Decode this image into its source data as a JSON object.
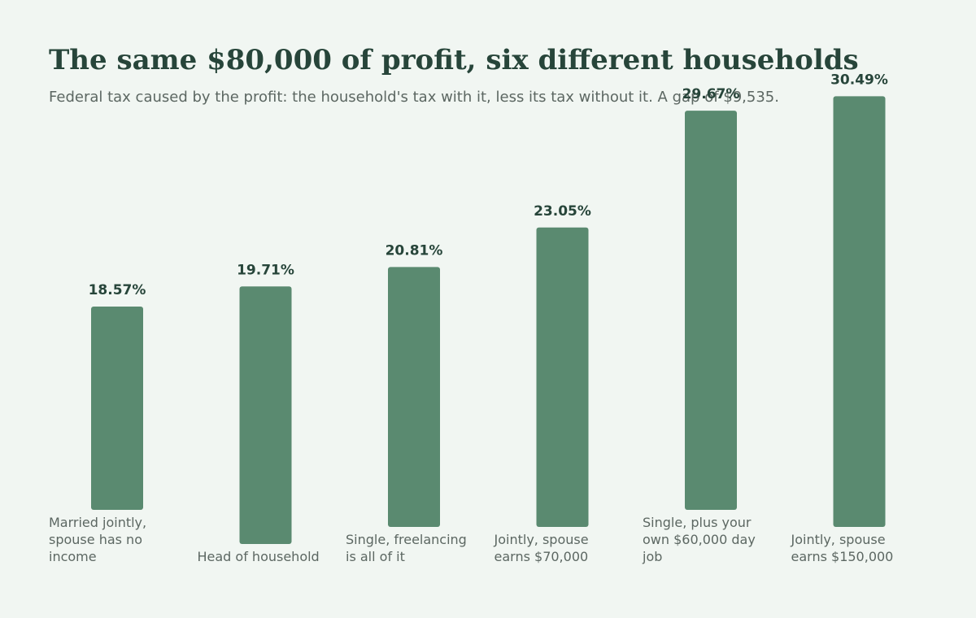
{
  "chart_data": {
    "type": "bar",
    "title": "The same $80,000 of profit, six different households",
    "subtitle": "Federal tax caused by the profit: the household's tax with it, less its tax without it. A gap of $9,535.",
    "categories": [
      [
        "Married jointly,",
        "spouse has no",
        "income"
      ],
      [
        "Head of household"
      ],
      [
        "Single, freelancing",
        "is all of it"
      ],
      [
        "Jointly, spouse",
        "earns $70,000"
      ],
      [
        "Single, plus your",
        "own $60,000 day",
        "job"
      ],
      [
        "Jointly, spouse",
        "earns $150,000"
      ]
    ],
    "values": [
      18.57,
      19.71,
      20.81,
      23.05,
      29.67,
      30.49
    ],
    "value_labels": [
      "18.57%",
      "19.71%",
      "20.81%",
      "23.05%",
      "29.67%",
      "30.49%"
    ],
    "bar_color": "#5a8a70",
    "text_color": "#27453a",
    "muted_color": "#5c6762",
    "background": "#f1f6f2",
    "grid": false,
    "legend": "none"
  }
}
